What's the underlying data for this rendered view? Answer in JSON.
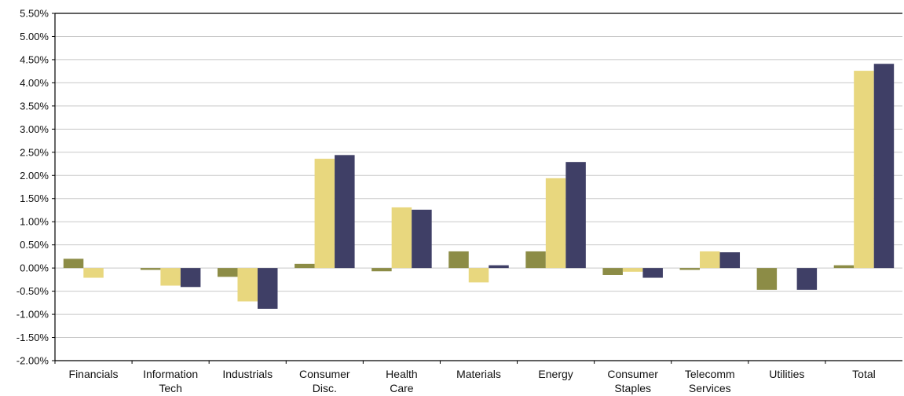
{
  "chart_data": {
    "type": "bar",
    "categories": [
      [
        "Financials"
      ],
      [
        "Information",
        "Tech"
      ],
      [
        "Industrials"
      ],
      [
        "Consumer",
        "Disc."
      ],
      [
        "Health",
        "Care"
      ],
      [
        "Materials"
      ],
      [
        "Energy"
      ],
      [
        "Consumer",
        "Staples"
      ],
      [
        "Telecomm",
        "Services"
      ],
      [
        "Utilities"
      ],
      [
        "Total"
      ]
    ],
    "series": [
      {
        "color": "#8c8c46",
        "values": [
          0.2,
          -0.04,
          -0.19,
          0.09,
          -0.07,
          0.36,
          0.36,
          -0.15,
          -0.04,
          -0.47,
          0.06
        ]
      },
      {
        "color": "#e8d77e",
        "values": [
          -0.21,
          -0.38,
          -0.72,
          2.36,
          1.31,
          -0.31,
          1.94,
          -0.08,
          0.36,
          0.0,
          4.26
        ]
      },
      {
        "color": "#3f3f66",
        "values": [
          0.0,
          -0.41,
          -0.88,
          2.44,
          1.26,
          0.06,
          2.29,
          -0.21,
          0.34,
          -0.47,
          4.41
        ]
      }
    ],
    "ylim": [
      -2.0,
      5.5
    ],
    "ytick_step": 0.5,
    "ytick_labels": [
      "-2.00%",
      "-1.50%",
      "-1.00%",
      "-0.50%",
      "0.00%",
      "0.50%",
      "1.00%",
      "1.50%",
      "2.00%",
      "2.50%",
      "3.00%",
      "3.50%",
      "4.00%",
      "4.50%",
      "5.00%",
      "5.50%"
    ],
    "grid": true,
    "legend": "none"
  }
}
